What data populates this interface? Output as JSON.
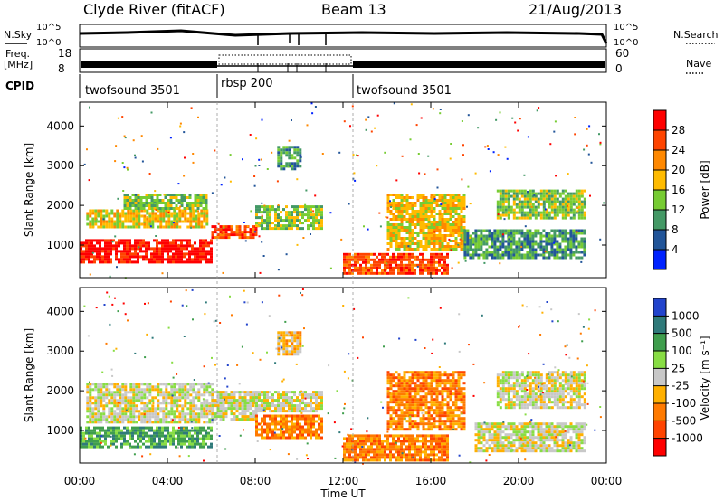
{
  "header": {
    "station": "Clyde River (fitACF)",
    "beam": "Beam 13",
    "date": "21/Aug/2013"
  },
  "top_panels": {
    "nsky_label": "N.Sky",
    "nsearch_label": "N.Search",
    "freq_label_line1": "Freq.",
    "freq_label_line2": "[MHz]",
    "nave_label": "Nave",
    "cpid_label": "CPID",
    "nsky_ticks": [
      "10^5",
      "10^0"
    ],
    "nsearch_ticks": [
      "10^5",
      "10^0"
    ],
    "freq_ticks": [
      "18",
      "8"
    ],
    "nave_ticks": [
      "60",
      "0"
    ],
    "cpid_segments": [
      {
        "label": "twofsound 3501",
        "start": 0
      },
      {
        "label": "rbsp 200",
        "start": 6
      },
      {
        "label": "twofsound 3501",
        "start": 12
      }
    ]
  },
  "axes": {
    "xlabel": "Time UT",
    "ylabel": "Slant Range [km]",
    "xticks": [
      "00:00",
      "04:00",
      "08:00",
      "12:00",
      "16:00",
      "20:00",
      "00:00"
    ],
    "xtick_values": [
      0,
      4,
      8,
      12,
      16,
      20,
      24
    ],
    "yticks": [
      "1000",
      "2000",
      "3000",
      "4000"
    ],
    "ytick_values": [
      1000,
      2000,
      3000,
      4000
    ],
    "xlim": [
      0,
      24
    ],
    "ylim": [
      180,
      4600
    ]
  },
  "colorbars": {
    "power": {
      "label": "Power [dB]",
      "ticks": [
        "28",
        "24",
        "20",
        "16",
        "12",
        "8",
        "4"
      ],
      "colors": [
        "#ff0000",
        "#ff4400",
        "#ff8800",
        "#ffbb00",
        "#77cc33",
        "#449966",
        "#225599",
        "#0022ff"
      ]
    },
    "velocity": {
      "label": "Velocity [m s⁻¹]",
      "ticks": [
        "1000",
        "500",
        "100",
        "25",
        "-25",
        "-100",
        "-500",
        "-1000"
      ],
      "colors": [
        "#2244cc",
        "#2f7a7a",
        "#3f9e4d",
        "#88dd44",
        "#c8c8c8",
        "#ffb000",
        "#ff7a00",
        "#ff4400",
        "#ff0000"
      ]
    }
  },
  "chart_data": {
    "type": "heatmap",
    "title": "Clyde River (fitACF)",
    "xlabel": "Time UT",
    "ylabel": "Slant Range [km]",
    "xlim": [
      0,
      24
    ],
    "ylim": [
      180,
      4600
    ],
    "power_bands": [
      {
        "t0": 0.0,
        "t1": 6.0,
        "r0": 600,
        "r1": 1150,
        "level": 0
      },
      {
        "t0": 6.0,
        "t1": 8.0,
        "r0": 1200,
        "r1": 1500,
        "level": 1
      },
      {
        "t0": 0.3,
        "t1": 5.8,
        "r0": 1450,
        "r1": 1900,
        "level": 3
      },
      {
        "t0": 2.0,
        "t1": 5.8,
        "r0": 1950,
        "r1": 2300,
        "level": 4
      },
      {
        "t0": 8.0,
        "t1": 11.0,
        "r0": 1400,
        "r1": 2000,
        "level": 4
      },
      {
        "t0": 12.0,
        "t1": 16.8,
        "r0": 280,
        "r1": 800,
        "level": 1
      },
      {
        "t0": 14.0,
        "t1": 17.5,
        "r0": 900,
        "r1": 2300,
        "level": 3
      },
      {
        "t0": 17.5,
        "t1": 23.0,
        "r0": 700,
        "r1": 1400,
        "level": 5
      },
      {
        "t0": 19.0,
        "t1": 23.0,
        "r0": 1700,
        "r1": 2400,
        "level": 4
      },
      {
        "t0": 9.0,
        "t1": 10.0,
        "r0": 2900,
        "r1": 3500,
        "level": 5
      }
    ],
    "velocity_bands": [
      {
        "t0": 0.0,
        "t1": 6.0,
        "r0": 600,
        "r1": 1100,
        "level": 2
      },
      {
        "t0": 0.3,
        "t1": 6.0,
        "r0": 1200,
        "r1": 2200,
        "level": 4
      },
      {
        "t0": 6.0,
        "t1": 8.0,
        "r0": 1300,
        "r1": 2000,
        "level": 4
      },
      {
        "t0": 8.0,
        "t1": 11.0,
        "r0": 800,
        "r1": 1400,
        "level": 6
      },
      {
        "t0": 8.0,
        "t1": 11.0,
        "r0": 1500,
        "r1": 2000,
        "level": 4
      },
      {
        "t0": 12.0,
        "t1": 16.8,
        "r0": 280,
        "r1": 900,
        "level": 6
      },
      {
        "t0": 14.0,
        "t1": 17.5,
        "r0": 1000,
        "r1": 2500,
        "level": 6
      },
      {
        "t0": 18.0,
        "t1": 23.0,
        "r0": 500,
        "r1": 1200,
        "level": 4
      },
      {
        "t0": 19.0,
        "t1": 23.0,
        "r0": 1600,
        "r1": 2500,
        "level": 4
      },
      {
        "t0": 9.0,
        "t1": 10.0,
        "r0": 2900,
        "r1": 3500,
        "level": 5
      }
    ]
  }
}
